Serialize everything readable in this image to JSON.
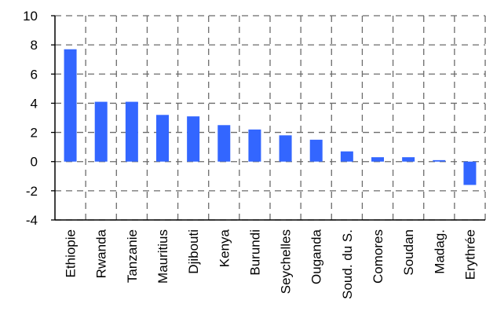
{
  "chart_data": {
    "type": "bar",
    "categories": [
      "Ethiopie",
      "Rwanda",
      "Tanzanie",
      "Mauritius",
      "Djibouti",
      "Kenya",
      "Burundi",
      "Seychelles",
      "Ouganda",
      "Soud. du S.",
      "Comores",
      "Soudan",
      "Madag.",
      "Erythrée"
    ],
    "values": [
      7.7,
      4.1,
      4.1,
      3.2,
      3.1,
      2.5,
      2.2,
      1.8,
      1.5,
      0.7,
      0.3,
      0.3,
      0.1,
      -1.6
    ],
    "title": "",
    "xlabel": "",
    "ylabel": "",
    "ylim": [
      -4,
      10
    ],
    "yticks": [
      -4,
      -2,
      0,
      2,
      4,
      6,
      8,
      10
    ],
    "grid": true,
    "bar_color": "#3366ff",
    "grid_color": "#6b6b6b"
  }
}
